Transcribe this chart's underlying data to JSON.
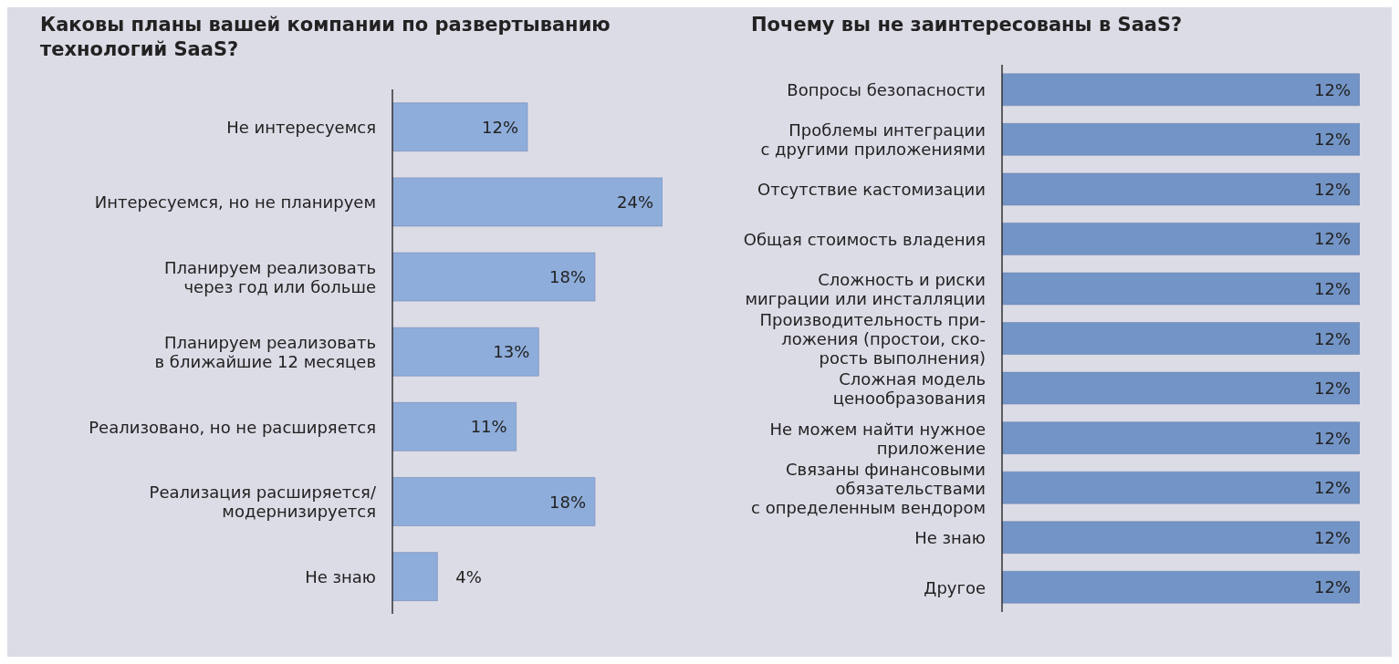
{
  "chart_data": [
    {
      "type": "bar",
      "orientation": "horizontal",
      "title": "Каковы планы вашей компании по развертыванию\nтехнологий SaaS?",
      "categories": [
        "Не интересуемся",
        "Интересуемся, но не планируем",
        "Планируем реализовать\nчерез год или больше",
        "Планируем реализовать\nв ближайшие 12 месяцев",
        "Реализовано, но не расширяется",
        "Реализация расширяется/\nмодернизируется",
        "Не знаю"
      ],
      "values": [
        12,
        24,
        18,
        13,
        11,
        18,
        4
      ],
      "value_labels": [
        "12%",
        "24%",
        "18%",
        "13%",
        "11%",
        "18%",
        "4%"
      ],
      "color": "#8eaddb"
    },
    {
      "type": "bar",
      "orientation": "horizontal",
      "title": "Почему вы не заинтересованы в SaaS?",
      "categories": [
        "Вопросы безопасности",
        "Проблемы интеграции\nс другими приложениями",
        "Отсутствие кастомизации",
        "Общая стоимость владения",
        "Сложность и риски\nмиграции или инсталляции",
        "Производительность при-\nложения (простои, ско-\nрость выполнения)",
        "Сложная модель\nценообразования",
        "Не можем найти нужное\nприложение",
        "Связаны финансовыми\nобязательствами\nс определенным вендором",
        "Не знаю",
        "Другое"
      ],
      "values": [
        12,
        12,
        12,
        12,
        12,
        12,
        12,
        12,
        12,
        12,
        12
      ],
      "value_labels": [
        "12%",
        "12%",
        "12%",
        "12%",
        "12%",
        "12%",
        "12%",
        "12%",
        "12%",
        "12%",
        "12%"
      ],
      "color": "#7394c6"
    }
  ]
}
